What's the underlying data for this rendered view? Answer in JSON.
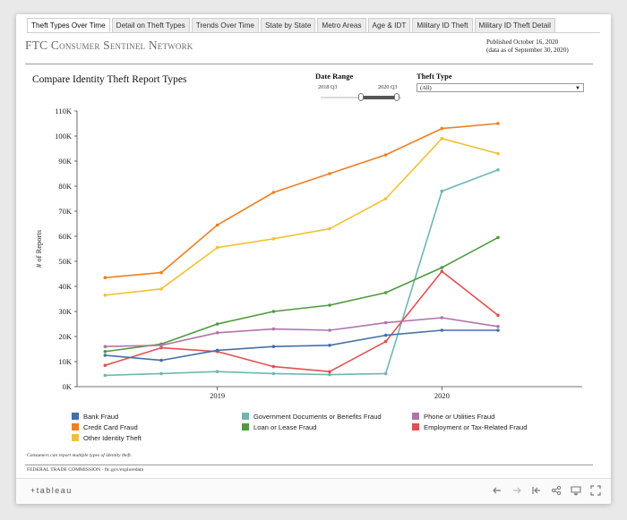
{
  "tabs": [
    {
      "label": "Theft Types Over Time",
      "active": true
    },
    {
      "label": "Detail on Theft Types",
      "active": false
    },
    {
      "label": "Trends Over Time",
      "active": false
    },
    {
      "label": "State by State",
      "active": false
    },
    {
      "label": "Metro Areas",
      "active": false
    },
    {
      "label": "Age & IDT",
      "active": false
    },
    {
      "label": "Military ID Theft",
      "active": false
    },
    {
      "label": "Military ID Theft Detail",
      "active": false
    }
  ],
  "header": {
    "brand_first": "FTC C",
    "brand_sc1": "onsumer",
    "brand_mid": " S",
    "brand_sc2": "entinel",
    "brand_end": " N",
    "brand_sc3": "etwork",
    "published": "Published October 16, 2020",
    "data_as_of": "(data as of September 30, 2020)"
  },
  "controls": {
    "date_range_label": "Date Range",
    "date_start": "2018 Q3",
    "date_end": "2020 Q3",
    "theft_type_label": "Theft Type",
    "theft_type_value": "(All)"
  },
  "footer": {
    "footnote": "Consumers can report multiple types of identity theft.",
    "agency": "FEDERAL TRADE COMMISSION · ftc.gov/exploredata"
  },
  "toolbar": {
    "logo": "+tableau"
  },
  "chart_data": {
    "type": "line",
    "title": "Compare Identity Theft Report Types",
    "ylabel": "# of Reports",
    "xlabel": "",
    "ylim": [
      0,
      110000
    ],
    "yticks": [
      "0K",
      "10K",
      "20K",
      "30K",
      "40K",
      "50K",
      "60K",
      "70K",
      "80K",
      "90K",
      "100K",
      "110K"
    ],
    "x": [
      "2018 Q3",
      "2018 Q4",
      "2019 Q1",
      "2019 Q2",
      "2019 Q3",
      "2019 Q4",
      "2020 Q1",
      "2020 Q2",
      "2020 Q3"
    ],
    "xtick_labels": [
      {
        "label": "2019",
        "at": "2019 Q1"
      },
      {
        "label": "2020",
        "at": "2020 Q1"
      }
    ],
    "grid": false,
    "legend_position": "bottom",
    "series": [
      {
        "name": "Credit Card Fraud",
        "color": "#f07f22",
        "values": [
          43500,
          45500,
          64500,
          77500,
          85000,
          92500,
          103000,
          105000,
          null
        ]
      },
      {
        "name": "Other Identity Theft",
        "color": "#f0c232",
        "values": [
          36500,
          39000,
          55500,
          59000,
          63000,
          75000,
          99000,
          93000,
          null
        ]
      },
      {
        "name": "Government Documents or Benefits Fraud",
        "color": "#6fb6b1",
        "values": [
          4500,
          5200,
          6000,
          5200,
          4800,
          5200,
          78000,
          86500,
          null
        ]
      },
      {
        "name": "Loan or Lease Fraud",
        "color": "#4f9a3f",
        "values": [
          14000,
          17000,
          25000,
          30000,
          32500,
          37500,
          47500,
          59500,
          null
        ]
      },
      {
        "name": "Employment or Tax-Related Fraud",
        "color": "#e05252",
        "values": [
          8500,
          15500,
          14000,
          8000,
          6000,
          18000,
          46000,
          28500,
          null
        ]
      },
      {
        "name": "Phone or Utilities Fraud",
        "color": "#b274a8",
        "values": [
          16000,
          16500,
          21500,
          23000,
          22500,
          25500,
          27500,
          24000,
          null
        ]
      },
      {
        "name": "Bank Fraud",
        "color": "#4470a8",
        "values": [
          12500,
          10500,
          14500,
          16000,
          16500,
          20500,
          22500,
          22500,
          null
        ]
      }
    ],
    "legend": [
      {
        "name": "Bank Fraud",
        "color": "#4470a8"
      },
      {
        "name": "Government Documents or Benefits Fraud",
        "color": "#6fb6b1"
      },
      {
        "name": "Phone or Utilities Fraud",
        "color": "#b274a8"
      },
      {
        "name": "Credit Card Fraud",
        "color": "#f07f22"
      },
      {
        "name": "Loan or Lease Fraud",
        "color": "#4f9a3f"
      },
      {
        "name": "Employment or Tax-Related Fraud",
        "color": "#e05252"
      },
      {
        "name": "Other Identity Theft",
        "color": "#f0c232"
      }
    ]
  }
}
